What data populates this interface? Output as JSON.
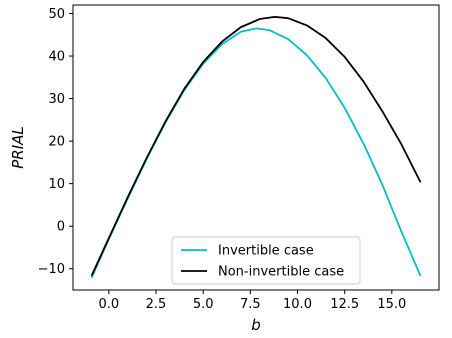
{
  "chart_data": {
    "type": "line",
    "xlabel": "b",
    "ylabel": "PRIAL",
    "xlim": [
      -1.9,
      17.5
    ],
    "ylim": [
      -15,
      52
    ],
    "x_ticks": [
      0.0,
      2.5,
      5.0,
      7.5,
      10.0,
      12.5,
      15.0
    ],
    "x_tick_labels": [
      "0.0",
      "2.5",
      "5.0",
      "7.5",
      "10.0",
      "12.5",
      "15.0"
    ],
    "y_ticks": [
      -10,
      0,
      10,
      20,
      30,
      40,
      50
    ],
    "y_tick_labels": [
      "−10",
      "0",
      "10",
      "20",
      "30",
      "40",
      "50"
    ],
    "grid": false,
    "legend_position": "bottom-center",
    "series": [
      {
        "name": "Invertible case",
        "color": "#00bfbf",
        "x": [
          -0.9,
          0.0,
          1.0,
          2.0,
          3.0,
          4.0,
          5.0,
          6.0,
          7.0,
          7.8,
          8.5,
          9.5,
          10.5,
          11.5,
          12.5,
          13.5,
          14.5,
          15.5,
          16.5
        ],
        "y": [
          -12,
          -3.0,
          6.5,
          15.8,
          24.4,
          32.0,
          38.2,
          42.8,
          45.7,
          46.5,
          46.1,
          44.0,
          40.2,
          34.8,
          27.8,
          19.4,
          9.7,
          -1.2,
          -11.5
        ]
      },
      {
        "name": "Non-invertible case",
        "color": "#000000",
        "x": [
          -0.9,
          0.0,
          1.0,
          2.0,
          3.0,
          4.0,
          5.0,
          6.0,
          7.0,
          8.0,
          8.8,
          9.5,
          10.5,
          11.5,
          12.5,
          13.5,
          14.5,
          15.5,
          16.5
        ],
        "y": [
          -11.5,
          -2.8,
          6.8,
          16.0,
          24.6,
          32.3,
          38.6,
          43.4,
          46.8,
          48.7,
          49.2,
          48.9,
          47.2,
          44.2,
          39.8,
          34.0,
          27.0,
          19.3,
          10.5
        ]
      }
    ]
  }
}
